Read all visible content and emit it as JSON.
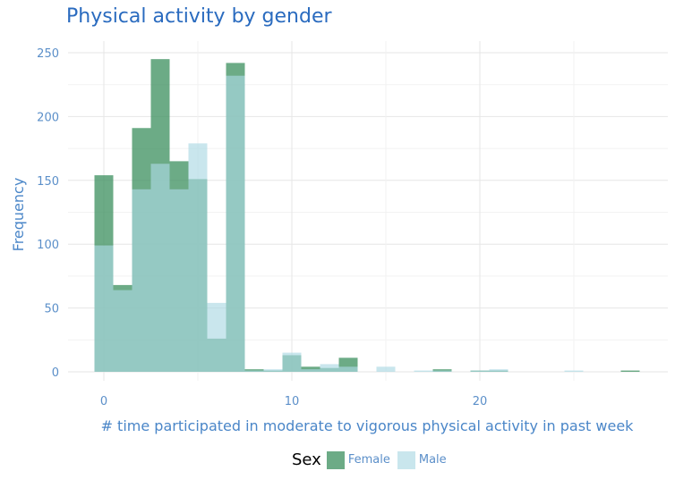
{
  "chart_data": {
    "type": "bar",
    "title": "Physical activity by gender",
    "xlabel": "# time participated in moderate to vigorous physical activity in past week",
    "ylabel": "Frequency",
    "xlim": [
      -2,
      30
    ],
    "ylim": [
      0,
      260
    ],
    "xticks": [
      0,
      10,
      20
    ],
    "yticks": [
      0,
      50,
      100,
      150,
      200,
      250
    ],
    "bin_width": 1,
    "grid": true,
    "legend": {
      "title": "Sex",
      "position": "bottom"
    },
    "series": [
      {
        "name": "Female",
        "color": "#3b8f5e",
        "opacity": 0.75,
        "bins": [
          {
            "x": 0,
            "y": 154
          },
          {
            "x": 1,
            "y": 68
          },
          {
            "x": 2,
            "y": 191
          },
          {
            "x": 3,
            "y": 245
          },
          {
            "x": 4,
            "y": 165
          },
          {
            "x": 5,
            "y": 151
          },
          {
            "x": 6,
            "y": 26
          },
          {
            "x": 7,
            "y": 242
          },
          {
            "x": 8,
            "y": 2
          },
          {
            "x": 9,
            "y": 1
          },
          {
            "x": 10,
            "y": 13
          },
          {
            "x": 11,
            "y": 4
          },
          {
            "x": 12,
            "y": 3
          },
          {
            "x": 13,
            "y": 11
          },
          {
            "x": 18,
            "y": 2
          },
          {
            "x": 20,
            "y": 1
          },
          {
            "x": 21,
            "y": 1
          },
          {
            "x": 28,
            "y": 1
          }
        ]
      },
      {
        "name": "Male",
        "color": "#acd8e4",
        "opacity": 0.65,
        "bins": [
          {
            "x": 0,
            "y": 99
          },
          {
            "x": 1,
            "y": 64
          },
          {
            "x": 2,
            "y": 143
          },
          {
            "x": 3,
            "y": 163
          },
          {
            "x": 4,
            "y": 143
          },
          {
            "x": 5,
            "y": 179
          },
          {
            "x": 6,
            "y": 54
          },
          {
            "x": 7,
            "y": 232
          },
          {
            "x": 8,
            "y": 1
          },
          {
            "x": 9,
            "y": 2
          },
          {
            "x": 10,
            "y": 15
          },
          {
            "x": 11,
            "y": 2
          },
          {
            "x": 12,
            "y": 6
          },
          {
            "x": 13,
            "y": 4
          },
          {
            "x": 15,
            "y": 4
          },
          {
            "x": 17,
            "y": 1
          },
          {
            "x": 18,
            "y": 1
          },
          {
            "x": 20,
            "y": 1
          },
          {
            "x": 21,
            "y": 2
          },
          {
            "x": 25,
            "y": 1
          }
        ]
      }
    ]
  }
}
